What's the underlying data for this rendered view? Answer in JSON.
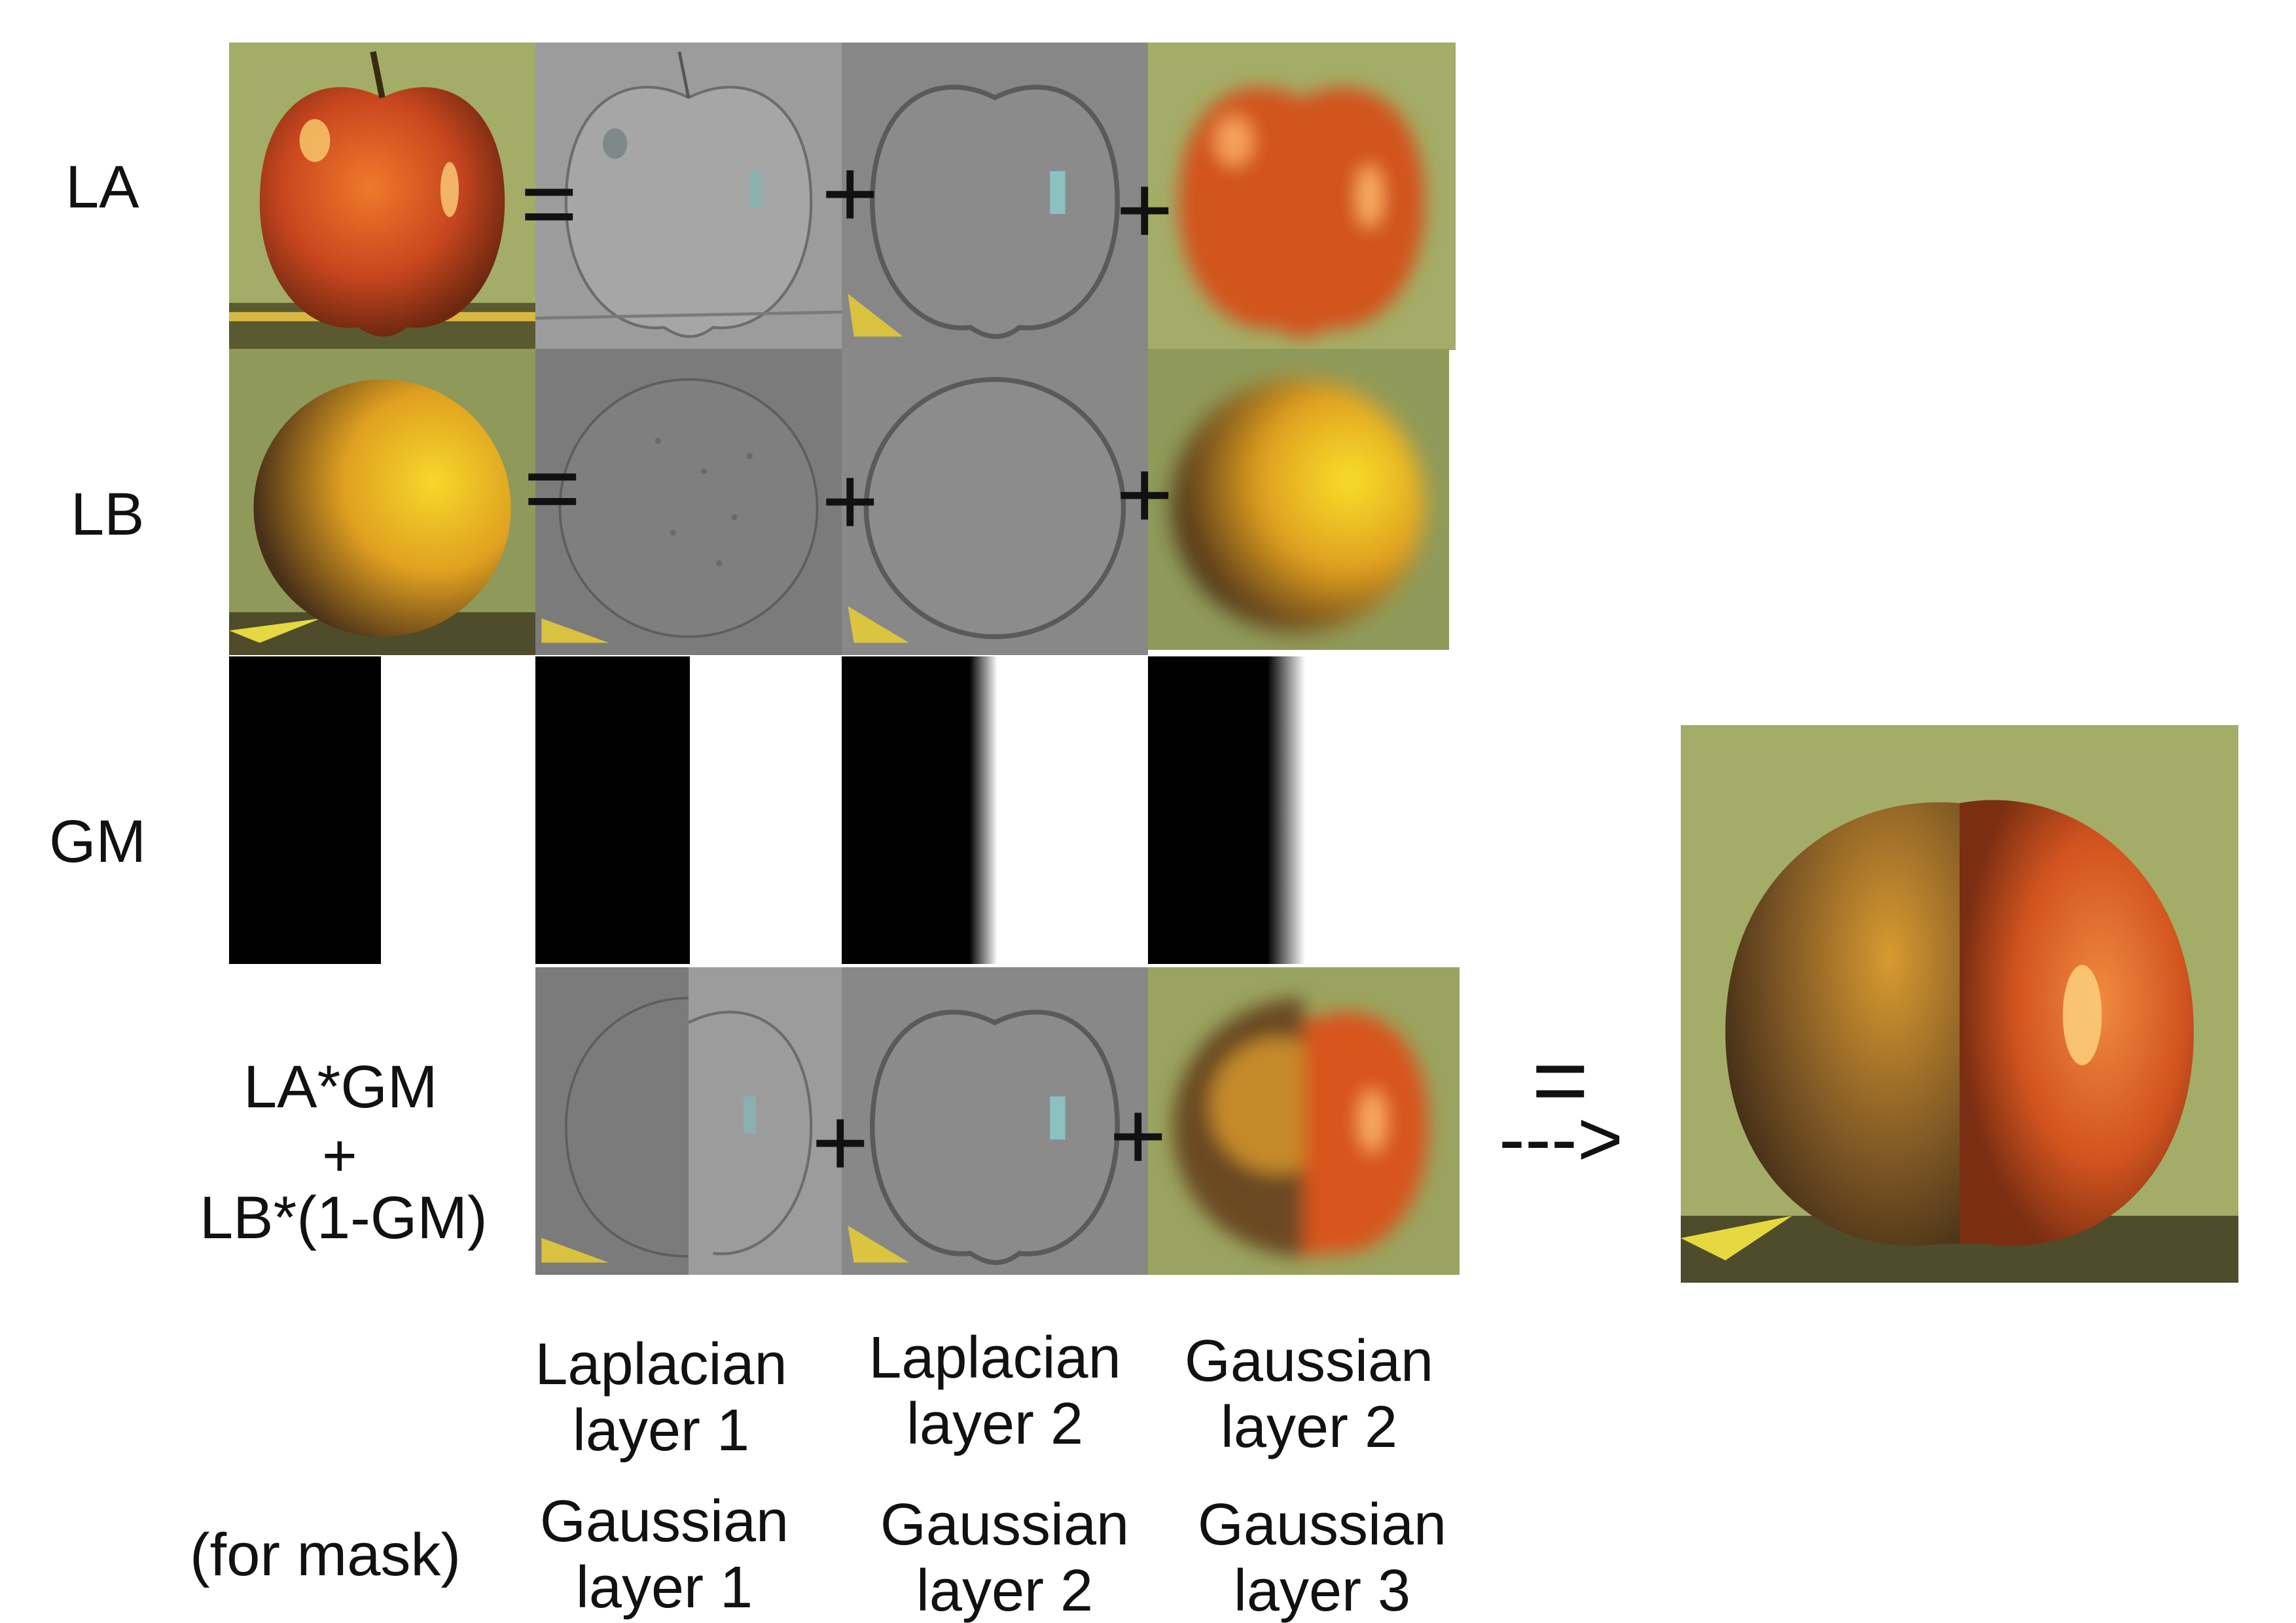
{
  "rows": {
    "la": "LA",
    "lb": "LB",
    "gm": "GM",
    "blend_1": "LA*GM",
    "blend_2": "+",
    "blend_3": "LB*(1-GM)"
  },
  "operators": {
    "equals": "=",
    "plus": "+",
    "arrow": "--->"
  },
  "captions": {
    "col1_line1": "Laplacian",
    "col1_line2": "layer 1",
    "col2_line1": "Laplacian",
    "col2_line2": "layer 2",
    "col3_line1": "Gaussian",
    "col3_line2": "layer 2",
    "mask_note": "(for mask)",
    "mask1_line1": "Gaussian",
    "mask1_line2": "layer 1",
    "mask2_line1": "Gaussian",
    "mask2_line2": "layer 2",
    "mask3_line1": "Gaussian",
    "mask3_line2": "layer 3"
  },
  "colors": {
    "apple": "#c8461f",
    "orange": "#e8a820",
    "background_green": "#9aa860",
    "laplacian_gray": "#8a8a8a",
    "mask_black": "#000000"
  }
}
